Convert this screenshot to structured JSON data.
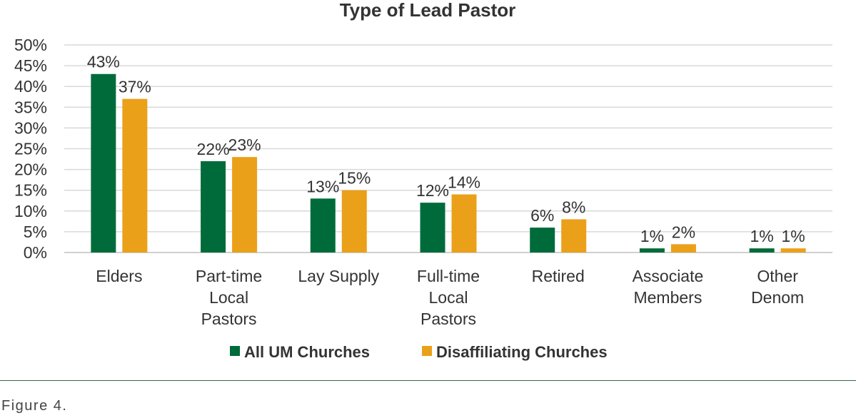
{
  "chart_data": {
    "type": "bar",
    "title": "Type of Lead Pastor",
    "categories": [
      [
        "Elders"
      ],
      [
        "Part-time",
        "Local",
        "Pastors"
      ],
      [
        "Lay Supply"
      ],
      [
        "Full-time",
        "Local",
        "Pastors"
      ],
      [
        "Retired"
      ],
      [
        "Associate",
        "Members"
      ],
      [
        "Other",
        "Denom"
      ]
    ],
    "series": [
      {
        "name": "All UM Churches",
        "color": "#006b3a",
        "values": [
          43,
          22,
          13,
          12,
          6,
          1,
          1
        ],
        "labels": [
          "43%",
          "22%",
          "13%",
          "12%",
          "6%",
          "1%",
          "1%"
        ]
      },
      {
        "name": "Disaffiliating Churches",
        "color": "#eba01a",
        "values": [
          37,
          23,
          15,
          14,
          8,
          2,
          1
        ],
        "labels": [
          "37%",
          "23%",
          "15%",
          "14%",
          "8%",
          "2%",
          "1%"
        ]
      }
    ],
    "yticks": [
      "0%",
      "5%",
      "10%",
      "15%",
      "20%",
      "25%",
      "30%",
      "35%",
      "40%",
      "45%",
      "50%"
    ],
    "ylim": [
      0,
      50
    ],
    "grid": true,
    "legend_position": "bottom"
  },
  "caption": "Figure 4."
}
